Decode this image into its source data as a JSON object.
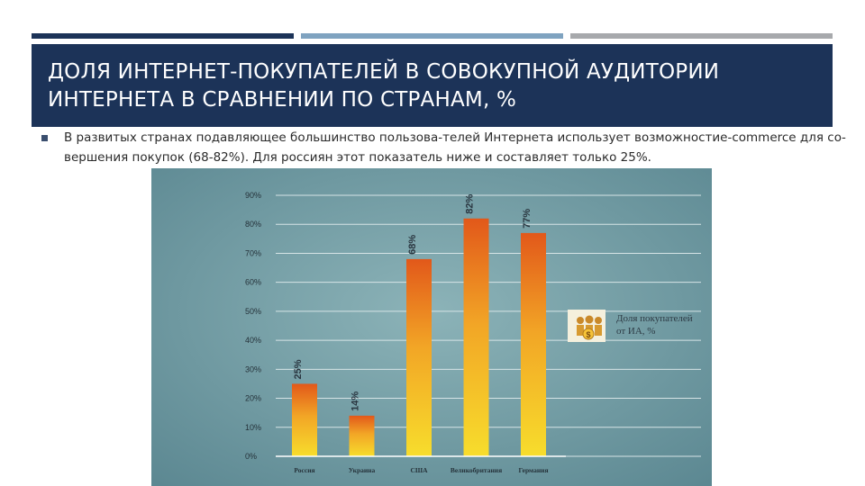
{
  "slide": {
    "title": "ДОЛЯ ИНТЕРНЕТ-ПОКУПАТЕЛЕЙ В СОВОКУПНОЙ АУДИТОРИИ ИНТЕРНЕТА В СРАВНЕНИИ ПО СТРАНАМ, %",
    "body": "В развитых странах подавляющее большинство пользова-телей Интернета использует возможностие-commerce для со-вершения покупок (68-82%). Для россиян этот показатель ниже и составляет только 25%.",
    "accent_colors": [
      "#1c3358",
      "#7fa3c0",
      "#a7a9ac"
    ]
  },
  "chart_data": {
    "type": "bar",
    "categories": [
      "Россия",
      "Украина",
      "США",
      "Великобритания",
      "Германия"
    ],
    "values": [
      25,
      14,
      68,
      82,
      77
    ],
    "data_labels": [
      "25%",
      "14%",
      "68%",
      "82%",
      "77%"
    ],
    "yticks": [
      "0%",
      "10%",
      "20%",
      "30%",
      "40%",
      "50%",
      "60%",
      "70%",
      "80%",
      "90%"
    ],
    "ylim": [
      0,
      90
    ],
    "grid": true,
    "legend": {
      "label_line1": "Доля покупателей",
      "label_line2": "от ИА, %",
      "icon": "shoppers-dollar-icon",
      "placement": "right-middle"
    },
    "background_color": "#6f9aa3",
    "bar_colors": {
      "top": "#e2581a",
      "middle": "#f2a626",
      "bottom": "#f7dd2c"
    }
  }
}
